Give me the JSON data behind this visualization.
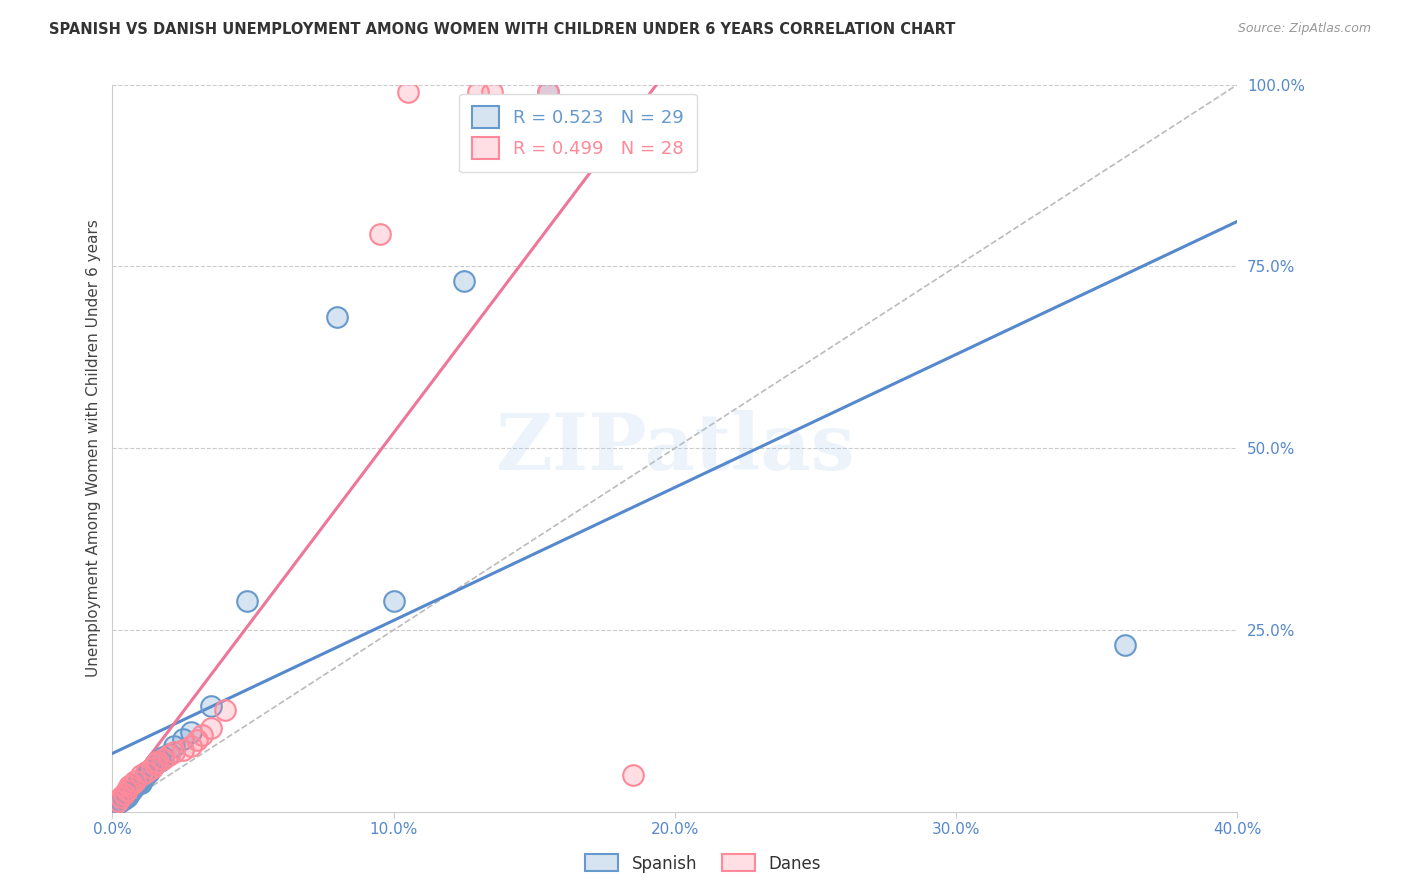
{
  "title": "SPANISH VS DANISH UNEMPLOYMENT AMONG WOMEN WITH CHILDREN UNDER 6 YEARS CORRELATION CHART",
  "source": "Source: ZipAtlas.com",
  "ylabel": "Unemployment Among Women with Children Under 6 years",
  "xlabel_ticks": [
    0.0,
    0.1,
    0.2,
    0.3,
    0.4
  ],
  "xlabel_labels": [
    "0.0%",
    "10.0%",
    "20.0%",
    "30.0%",
    "40.0%"
  ],
  "ylabel_ticks": [
    0.0,
    0.25,
    0.5,
    0.75,
    1.0
  ],
  "ylabel_labels": [
    "",
    "25.0%",
    "50.0%",
    "75.0%",
    "100.0%"
  ],
  "xlim": [
    0.0,
    0.4
  ],
  "ylim": [
    0.0,
    1.0
  ],
  "watermark": "ZIPatlas",
  "legend_R_spanish": "R = 0.523",
  "legend_N_spanish": "N = 29",
  "legend_R_danes": "R = 0.499",
  "legend_N_danes": "N = 28",
  "spanish_color": "#6699CC",
  "danes_color": "#FF8899",
  "spanish_line_color": "#5588CC",
  "danes_line_color": "#EE7799",
  "ref_line_color": "#BBBBBB",
  "background_color": "#FFFFFF",
  "grid_color": "#CCCCCC",
  "spanish_x": [
    0.001,
    0.002,
    0.003,
    0.004,
    0.005,
    0.006,
    0.007,
    0.008,
    0.009,
    0.01,
    0.011,
    0.012,
    0.013,
    0.014,
    0.015,
    0.016,
    0.017,
    0.018,
    0.02,
    0.022,
    0.025,
    0.028,
    0.035,
    0.048,
    0.08,
    0.1,
    0.125,
    0.155,
    0.36
  ],
  "spanish_y": [
    0.01,
    0.012,
    0.015,
    0.018,
    0.02,
    0.025,
    0.03,
    0.035,
    0.038,
    0.04,
    0.045,
    0.05,
    0.055,
    0.06,
    0.065,
    0.068,
    0.07,
    0.075,
    0.08,
    0.09,
    0.1,
    0.11,
    0.145,
    0.29,
    0.68,
    0.29,
    0.73,
    0.99,
    0.23
  ],
  "danes_x": [
    0.001,
    0.002,
    0.003,
    0.004,
    0.005,
    0.006,
    0.007,
    0.008,
    0.01,
    0.012,
    0.014,
    0.015,
    0.016,
    0.018,
    0.02,
    0.022,
    0.025,
    0.028,
    0.03,
    0.032,
    0.035,
    0.04,
    0.095,
    0.105,
    0.13,
    0.135,
    0.155,
    0.185
  ],
  "danes_y": [
    0.01,
    0.015,
    0.02,
    0.025,
    0.03,
    0.035,
    0.038,
    0.042,
    0.05,
    0.055,
    0.06,
    0.065,
    0.068,
    0.072,
    0.078,
    0.082,
    0.085,
    0.09,
    0.098,
    0.105,
    0.115,
    0.14,
    0.795,
    0.99,
    0.99,
    0.99,
    0.99,
    0.05
  ]
}
